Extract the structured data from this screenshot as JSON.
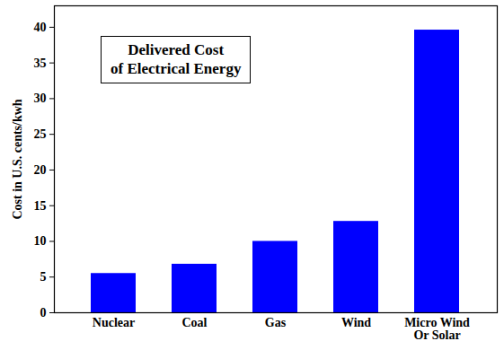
{
  "chart_data": {
    "type": "bar",
    "title": "Delivered Cost\nof Electrical Energy",
    "y_label": "Cost in U.S. cents/kwh",
    "categories": [
      "Nuclear",
      "Coal",
      "Gas",
      "Wind",
      "Micro Wind\nOr Solar"
    ],
    "values": [
      5.5,
      6.8,
      10,
      12.8,
      39.6
    ],
    "color": "#0000ff",
    "ylim": [
      0,
      43
    ],
    "yticks": [
      0,
      5,
      10,
      15,
      20,
      25,
      30,
      35,
      40
    ],
    "grid": false
  }
}
